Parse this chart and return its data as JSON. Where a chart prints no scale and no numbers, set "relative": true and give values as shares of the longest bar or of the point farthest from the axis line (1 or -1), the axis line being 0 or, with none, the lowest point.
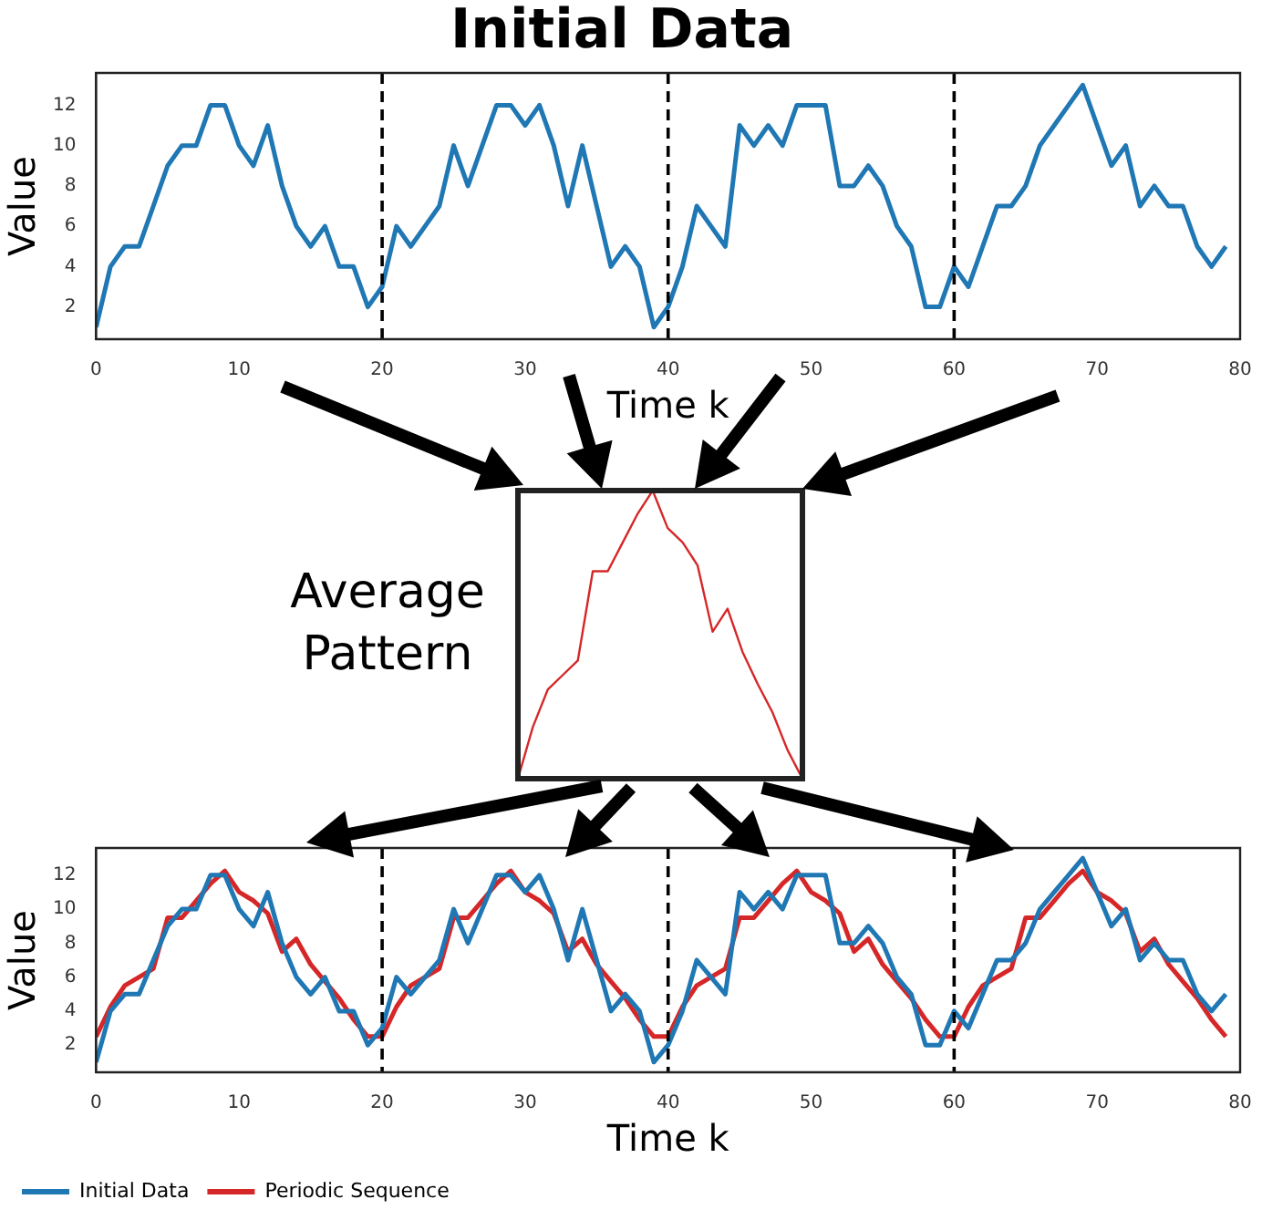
{
  "chart_data": [
    {
      "type": "line",
      "title": "Initial Data",
      "xlabel": "Time k",
      "ylabel": "Value",
      "x": [
        0,
        1,
        2,
        3,
        4,
        5,
        6,
        7,
        8,
        9,
        10,
        11,
        12,
        13,
        14,
        15,
        16,
        17,
        18,
        19,
        20,
        21,
        22,
        23,
        24,
        25,
        26,
        27,
        28,
        29,
        30,
        31,
        32,
        33,
        34,
        35,
        36,
        37,
        38,
        39,
        40,
        41,
        42,
        43,
        44,
        45,
        46,
        47,
        48,
        49,
        50,
        51,
        52,
        53,
        54,
        55,
        56,
        57,
        58,
        59,
        60,
        61,
        62,
        63,
        64,
        65,
        66,
        67,
        68,
        69,
        70,
        71,
        72,
        73,
        74,
        75,
        76,
        77,
        78,
        79
      ],
      "series": [
        {
          "color": "#1f77b4",
          "values": [
            1,
            4,
            5,
            5,
            7,
            9,
            10,
            10,
            12,
            12,
            10,
            9,
            11,
            8,
            6,
            5,
            6,
            4,
            4,
            2,
            3,
            6,
            5,
            6,
            7,
            10,
            8,
            10,
            12,
            12,
            11,
            12,
            10,
            7,
            10,
            7,
            4,
            5,
            4,
            1,
            2,
            4,
            7,
            6,
            5,
            11,
            10,
            11,
            10,
            12,
            12,
            12,
            8,
            8,
            9,
            8,
            6,
            5,
            2,
            2,
            4,
            3,
            5,
            7,
            7,
            8,
            10,
            11,
            12,
            13,
            11,
            9,
            10,
            7,
            8,
            7,
            7,
            5,
            4,
            5
          ]
        }
      ],
      "xlim": [
        0,
        80
      ],
      "ylim": [
        0.4,
        13.6
      ],
      "xticks": [
        0,
        10,
        20,
        30,
        40,
        50,
        60,
        70,
        80
      ],
      "yticks": [
        2,
        4,
        6,
        8,
        10,
        12
      ],
      "ref_lines": [
        {
          "axis": "x",
          "value": 20,
          "color": "#000000",
          "line_style": "dashed"
        },
        {
          "axis": "x",
          "value": 40,
          "color": "#000000",
          "line_style": "dashed"
        },
        {
          "axis": "x",
          "value": 60,
          "color": "#000000",
          "line_style": "dashed"
        }
      ]
    },
    {
      "type": "line",
      "title": "Average Pattern",
      "relative": true,
      "categories": [
        null,
        null,
        null,
        null,
        null,
        null,
        null,
        null,
        null,
        null,
        null,
        null,
        null,
        null,
        null,
        null,
        null,
        null,
        null,
        null
      ],
      "series": [
        {
          "color": "#d62728",
          "values": [
            0,
            0.18,
            0.31,
            0.36,
            0.41,
            0.72,
            0.72,
            0.82,
            0.92,
            1,
            0.87,
            0.82,
            0.74,
            0.51,
            0.59,
            0.44,
            0.33,
            0.23,
            0.1,
            0
          ]
        }
      ]
    },
    {
      "type": "line",
      "xlabel": "Time k",
      "ylabel": "Value",
      "legend": "bottom left",
      "x": [
        0,
        1,
        2,
        3,
        4,
        5,
        6,
        7,
        8,
        9,
        10,
        11,
        12,
        13,
        14,
        15,
        16,
        17,
        18,
        19,
        20,
        21,
        22,
        23,
        24,
        25,
        26,
        27,
        28,
        29,
        30,
        31,
        32,
        33,
        34,
        35,
        36,
        37,
        38,
        39,
        40,
        41,
        42,
        43,
        44,
        45,
        46,
        47,
        48,
        49,
        50,
        51,
        52,
        53,
        54,
        55,
        56,
        57,
        58,
        59,
        60,
        61,
        62,
        63,
        64,
        65,
        66,
        67,
        68,
        69,
        70,
        71,
        72,
        73,
        74,
        75,
        76,
        77,
        78,
        79
      ],
      "series": [
        {
          "name": "Initial Data",
          "color": "#1f77b4",
          "values": [
            1,
            4,
            5,
            5,
            7,
            9,
            10,
            10,
            12,
            12,
            10,
            9,
            11,
            8,
            6,
            5,
            6,
            4,
            4,
            2,
            3,
            6,
            5,
            6,
            7,
            10,
            8,
            10,
            12,
            12,
            11,
            12,
            10,
            7,
            10,
            7,
            4,
            5,
            4,
            1,
            2,
            4,
            7,
            6,
            5,
            11,
            10,
            11,
            10,
            12,
            12,
            12,
            8,
            8,
            9,
            8,
            6,
            5,
            2,
            2,
            4,
            3,
            5,
            7,
            7,
            8,
            10,
            11,
            12,
            13,
            11,
            9,
            10,
            7,
            8,
            7,
            7,
            5,
            4,
            5
          ]
        },
        {
          "name": "Periodic Sequence",
          "color": "#d62728",
          "values": [
            2.5,
            4.25,
            5.5,
            6,
            6.5,
            9.5,
            9.5,
            10.5,
            11.5,
            12.25,
            11,
            10.5,
            9.75,
            7.5,
            8.25,
            6.75,
            5.75,
            4.75,
            3.5,
            2.5,
            2.5,
            4.25,
            5.5,
            6,
            6.5,
            9.5,
            9.5,
            10.5,
            11.5,
            12.25,
            11,
            10.5,
            9.75,
            7.5,
            8.25,
            6.75,
            5.75,
            4.75,
            3.5,
            2.5,
            2.5,
            4.25,
            5.5,
            6,
            6.5,
            9.5,
            9.5,
            10.5,
            11.5,
            12.25,
            11,
            10.5,
            9.75,
            7.5,
            8.25,
            6.75,
            5.75,
            4.75,
            3.5,
            2.5,
            2.5,
            4.25,
            5.5,
            6,
            6.5,
            9.5,
            9.5,
            10.5,
            11.5,
            12.25,
            11,
            10.5,
            9.75,
            7.5,
            8.25,
            6.75,
            5.75,
            4.75,
            3.5,
            2.5
          ]
        }
      ],
      "xlim": [
        0,
        80
      ],
      "ylim": [
        0.4,
        13.6
      ],
      "xticks": [
        0,
        10,
        20,
        30,
        40,
        50,
        60,
        70,
        80
      ],
      "yticks": [
        2,
        4,
        6,
        8,
        10,
        12
      ],
      "ref_lines": [
        {
          "axis": "x",
          "value": 20,
          "color": "#000000",
          "line_style": "dashed"
        },
        {
          "axis": "x",
          "value": 40,
          "color": "#000000",
          "line_style": "dashed"
        },
        {
          "axis": "x",
          "value": 60,
          "color": "#000000",
          "line_style": "dashed"
        }
      ]
    }
  ]
}
